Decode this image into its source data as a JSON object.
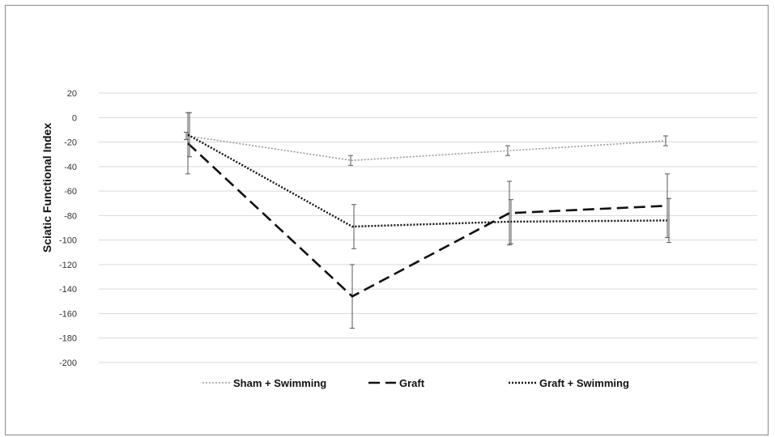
{
  "chart_data": {
    "type": "line",
    "title": "",
    "xlabel": "",
    "ylabel": "Sciatic Functional Index",
    "ylim": [
      -200,
      20
    ],
    "yticks": [
      20,
      0,
      -20,
      -40,
      -60,
      -80,
      -100,
      -120,
      -140,
      -160,
      -180,
      -200
    ],
    "grid": true,
    "legend_position": "bottom",
    "x": [
      1,
      2,
      3,
      4
    ],
    "series": [
      {
        "name": "Sham + Swimming",
        "style": "dotted",
        "color": "#9a9a9a",
        "values": [
          -15,
          -35,
          -27,
          -19
        ],
        "error": [
          3,
          4,
          4,
          4
        ]
      },
      {
        "name": "Graft",
        "style": "dashed",
        "color": "#111111",
        "values": [
          -21,
          -146,
          -78,
          -72
        ],
        "error": [
          25,
          26,
          26,
          26
        ]
      },
      {
        "name": "Graft + Swimming",
        "style": "dotted",
        "color": "#111111",
        "values": [
          -14,
          -89,
          -85,
          -84
        ],
        "error": [
          18,
          18,
          18,
          18
        ]
      }
    ]
  }
}
